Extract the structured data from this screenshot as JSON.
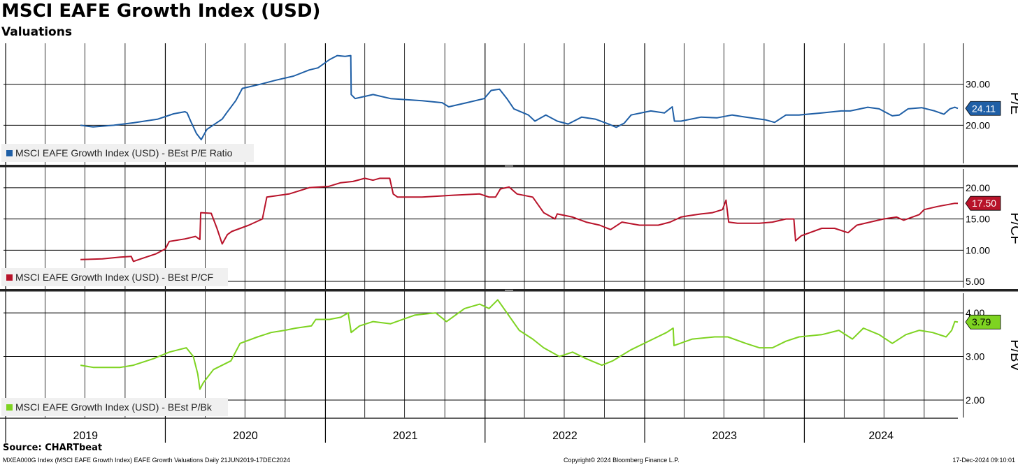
{
  "header": {
    "title": "MSCI EAFE Growth Index (USD)",
    "subtitle": "Valuations"
  },
  "footer": {
    "source": "Source: CHARTbeat",
    "left": "MXEA000G Index (MSCI EAFE Growth Index) EAFE Growth Valuations  Daily 21JUN2019-17DEC2024",
    "center": "Copyright© 2024 Bloomberg Finance L.P.",
    "right": "17-Dec-2024 09:10:01"
  },
  "chart_data": {
    "type": "line",
    "x_range": [
      "2018-12-27",
      "2024-12-17"
    ],
    "x_axis_labels": [
      "2019",
      "2020",
      "2021",
      "2022",
      "2023",
      "2024"
    ],
    "panels": [
      {
        "axis_label": "P/E",
        "ylim": [
          10.7,
          40.0
        ],
        "ticks": [
          20,
          30
        ],
        "tick_labels": [
          "20.00",
          "30.00"
        ],
        "color": "#1f5fa6",
        "last_value": "24.11",
        "series": {
          "name": "MSCI EAFE Growth Index (USD) - BEst P/E Ratio",
          "points": [
            [
              "2019-06-21",
              20.0
            ],
            [
              "2019-07-20",
              19.6
            ],
            [
              "2019-09-05",
              20.0
            ],
            [
              "2019-10-20",
              20.6
            ],
            [
              "2019-12-15",
              21.5
            ],
            [
              "2020-01-20",
              22.8
            ],
            [
              "2020-02-15",
              23.3
            ],
            [
              "2020-02-20",
              23.0
            ],
            [
              "2020-02-28",
              21.0
            ],
            [
              "2020-03-12",
              18.0
            ],
            [
              "2020-03-23",
              16.5
            ],
            [
              "2020-04-05",
              19.0
            ],
            [
              "2020-05-10",
              21.5
            ],
            [
              "2020-05-20",
              23.0
            ],
            [
              "2020-06-10",
              26.0
            ],
            [
              "2020-06-25",
              29.0
            ],
            [
              "2020-08-05",
              30.0
            ],
            [
              "2020-09-10",
              31.0
            ],
            [
              "2020-10-20",
              32.0
            ],
            [
              "2020-11-25",
              33.5
            ],
            [
              "2020-12-15",
              34.0
            ],
            [
              "2021-01-10",
              36.0
            ],
            [
              "2021-01-28",
              37.0
            ],
            [
              "2021-02-15",
              36.8
            ],
            [
              "2021-02-28",
              37.0
            ],
            [
              "2021-03-01",
              27.5
            ],
            [
              "2021-03-10",
              26.5
            ],
            [
              "2021-04-20",
              27.5
            ],
            [
              "2021-05-30",
              26.5
            ],
            [
              "2021-08-10",
              26.0
            ],
            [
              "2021-09-25",
              25.5
            ],
            [
              "2021-10-10",
              24.5
            ],
            [
              "2021-11-20",
              25.5
            ],
            [
              "2021-12-30",
              26.5
            ],
            [
              "2022-01-15",
              28.5
            ],
            [
              "2022-02-03",
              28.8
            ],
            [
              "2022-02-20",
              26.5
            ],
            [
              "2022-03-08",
              24.0
            ],
            [
              "2022-04-10",
              22.5
            ],
            [
              "2022-04-25",
              21.0
            ],
            [
              "2022-05-20",
              22.5
            ],
            [
              "2022-06-15",
              21.0
            ],
            [
              "2022-07-10",
              20.3
            ],
            [
              "2022-08-10",
              22.0
            ],
            [
              "2022-09-10",
              21.5
            ],
            [
              "2022-10-10",
              20.3
            ],
            [
              "2022-10-28",
              19.5
            ],
            [
              "2022-11-15",
              20.5
            ],
            [
              "2022-12-01",
              22.5
            ],
            [
              "2023-01-15",
              23.5
            ],
            [
              "2023-02-15",
              23.0
            ],
            [
              "2023-03-05",
              24.5
            ],
            [
              "2023-03-10",
              21.0
            ],
            [
              "2023-03-25",
              21.0
            ],
            [
              "2023-05-10",
              22.0
            ],
            [
              "2023-06-15",
              21.8
            ],
            [
              "2023-07-20",
              22.5
            ],
            [
              "2023-08-20",
              22.0
            ],
            [
              "2023-10-05",
              21.3
            ],
            [
              "2023-10-25",
              20.7
            ],
            [
              "2023-11-20",
              22.5
            ],
            [
              "2023-12-20",
              22.5
            ],
            [
              "2024-02-10",
              23.0
            ],
            [
              "2024-03-25",
              23.5
            ],
            [
              "2024-04-15",
              23.5
            ],
            [
              "2024-05-25",
              24.4
            ],
            [
              "2024-06-20",
              24.0
            ],
            [
              "2024-07-20",
              22.3
            ],
            [
              "2024-08-05",
              22.5
            ],
            [
              "2024-08-25",
              24.0
            ],
            [
              "2024-09-25",
              24.3
            ],
            [
              "2024-10-25",
              23.5
            ],
            [
              "2024-11-15",
              22.7
            ],
            [
              "2024-11-29",
              24.0
            ],
            [
              "2024-12-10",
              24.4
            ],
            [
              "2024-12-17",
              24.1
            ]
          ]
        }
      },
      {
        "axis_label": "P/CF",
        "ylim": [
          4.0,
          23.0
        ],
        "ticks": [
          5,
          10,
          15,
          20
        ],
        "tick_labels": [
          "5.00",
          "10.00",
          "15.00",
          "20.00"
        ],
        "color": "#b8132a",
        "last_value": "17.50",
        "series": {
          "name": "MSCI EAFE Growth Index (USD) - BEst P/CF",
          "points": [
            [
              "2019-06-21",
              8.5
            ],
            [
              "2019-08-10",
              8.6
            ],
            [
              "2019-09-20",
              8.9
            ],
            [
              "2019-10-15",
              9.0
            ],
            [
              "2019-10-20",
              8.2
            ],
            [
              "2019-11-10",
              8.7
            ],
            [
              "2019-12-10",
              9.4
            ],
            [
              "2020-01-01",
              10.2
            ],
            [
              "2020-01-10",
              11.4
            ],
            [
              "2020-02-15",
              11.8
            ],
            [
              "2020-03-10",
              12.2
            ],
            [
              "2020-03-20",
              11.7
            ],
            [
              "2020-03-22",
              16.0
            ],
            [
              "2020-04-15",
              15.9
            ],
            [
              "2020-04-28",
              13.5
            ],
            [
              "2020-05-10",
              11.0
            ],
            [
              "2020-05-22",
              12.5
            ],
            [
              "2020-06-01",
              13.0
            ],
            [
              "2020-07-10",
              14.0
            ],
            [
              "2020-08-10",
              15.0
            ],
            [
              "2020-08-20",
              18.5
            ],
            [
              "2020-10-10",
              19.0
            ],
            [
              "2020-11-25",
              20.0
            ],
            [
              "2021-01-08",
              20.2
            ],
            [
              "2021-02-05",
              20.8
            ],
            [
              "2021-03-05",
              21.0
            ],
            [
              "2021-04-01",
              21.5
            ],
            [
              "2021-04-20",
              21.2
            ],
            [
              "2021-05-05",
              21.5
            ],
            [
              "2021-05-28",
              21.5
            ],
            [
              "2021-06-05",
              19.0
            ],
            [
              "2021-06-15",
              18.5
            ],
            [
              "2021-08-10",
              18.5
            ],
            [
              "2021-10-20",
              18.8
            ],
            [
              "2021-12-20",
              19.0
            ],
            [
              "2022-01-10",
              18.5
            ],
            [
              "2022-01-25",
              18.5
            ],
            [
              "2022-02-05",
              19.8
            ],
            [
              "2022-02-25",
              20.1
            ],
            [
              "2022-03-15",
              19.0
            ],
            [
              "2022-04-20",
              18.5
            ],
            [
              "2022-05-15",
              16.0
            ],
            [
              "2022-06-10",
              15.0
            ],
            [
              "2022-06-15",
              15.8
            ],
            [
              "2022-07-20",
              15.3
            ],
            [
              "2022-08-20",
              14.5
            ],
            [
              "2022-09-20",
              14.0
            ],
            [
              "2022-10-15",
              13.3
            ],
            [
              "2022-11-10",
              14.5
            ],
            [
              "2022-12-20",
              14.0
            ],
            [
              "2023-02-01",
              14.0
            ],
            [
              "2023-02-28",
              14.5
            ],
            [
              "2023-03-25",
              15.3
            ],
            [
              "2023-04-10",
              15.5
            ],
            [
              "2023-05-10",
              15.8
            ],
            [
              "2023-06-05",
              16.0
            ],
            [
              "2023-06-28",
              16.5
            ],
            [
              "2023-07-06",
              18.0
            ],
            [
              "2023-07-12",
              14.5
            ],
            [
              "2023-08-01",
              14.3
            ],
            [
              "2023-09-20",
              14.3
            ],
            [
              "2023-10-20",
              14.5
            ],
            [
              "2023-11-20",
              15.0
            ],
            [
              "2023-12-08",
              15.0
            ],
            [
              "2023-12-12",
              11.5
            ],
            [
              "2023-12-25",
              12.3
            ],
            [
              "2024-02-10",
              13.5
            ],
            [
              "2024-03-10",
              13.5
            ],
            [
              "2024-04-10",
              12.8
            ],
            [
              "2024-04-30",
              14.0
            ],
            [
              "2024-05-30",
              14.5
            ],
            [
              "2024-06-30",
              15.0
            ],
            [
              "2024-07-30",
              15.3
            ],
            [
              "2024-08-15",
              14.8
            ],
            [
              "2024-09-20",
              15.7
            ],
            [
              "2024-10-01",
              16.5
            ],
            [
              "2024-11-01",
              17.0
            ],
            [
              "2024-12-10",
              17.5
            ],
            [
              "2024-12-17",
              17.5
            ]
          ]
        }
      },
      {
        "axis_label": "P/BV",
        "ylim": [
          1.6,
          4.45
        ],
        "ticks": [
          2,
          3,
          4
        ],
        "tick_labels": [
          "2.00",
          "3.00",
          "4.00"
        ],
        "color": "#7ed321",
        "last_value": "3.79",
        "series": {
          "name": "MSCI EAFE Growth Index (USD) - BEst P/Bk",
          "points": [
            [
              "2019-06-21",
              2.8
            ],
            [
              "2019-07-20",
              2.75
            ],
            [
              "2019-09-20",
              2.75
            ],
            [
              "2019-10-20",
              2.8
            ],
            [
              "2019-12-05",
              2.95
            ],
            [
              "2020-01-10",
              3.1
            ],
            [
              "2020-02-18",
              3.2
            ],
            [
              "2020-03-05",
              3.0
            ],
            [
              "2020-03-15",
              2.6
            ],
            [
              "2020-03-20",
              2.25
            ],
            [
              "2020-03-28",
              2.4
            ],
            [
              "2020-04-20",
              2.7
            ],
            [
              "2020-05-30",
              2.9
            ],
            [
              "2020-06-20",
              3.3
            ],
            [
              "2020-07-30",
              3.45
            ],
            [
              "2020-08-30",
              3.55
            ],
            [
              "2020-09-30",
              3.6
            ],
            [
              "2020-10-25",
              3.65
            ],
            [
              "2020-11-30",
              3.7
            ],
            [
              "2020-12-10",
              3.85
            ],
            [
              "2021-01-10",
              3.85
            ],
            [
              "2021-02-05",
              3.9
            ],
            [
              "2021-02-22",
              4.0
            ],
            [
              "2021-03-01",
              3.55
            ],
            [
              "2021-03-20",
              3.7
            ],
            [
              "2021-04-20",
              3.8
            ],
            [
              "2021-05-30",
              3.75
            ],
            [
              "2021-07-25",
              3.95
            ],
            [
              "2021-09-10",
              4.0
            ],
            [
              "2021-10-05",
              3.8
            ],
            [
              "2021-11-15",
              4.1
            ],
            [
              "2021-12-20",
              4.2
            ],
            [
              "2022-01-10",
              4.1
            ],
            [
              "2022-01-30",
              4.3
            ],
            [
              "2022-02-20",
              4.0
            ],
            [
              "2022-03-20",
              3.6
            ],
            [
              "2022-04-20",
              3.4
            ],
            [
              "2022-05-15",
              3.2
            ],
            [
              "2022-06-20",
              3.0
            ],
            [
              "2022-07-20",
              3.1
            ],
            [
              "2022-08-20",
              2.95
            ],
            [
              "2022-09-25",
              2.8
            ],
            [
              "2022-10-20",
              2.9
            ],
            [
              "2022-11-30",
              3.15
            ],
            [
              "2023-01-20",
              3.4
            ],
            [
              "2023-02-20",
              3.55
            ],
            [
              "2023-03-07",
              3.65
            ],
            [
              "2023-03-09",
              3.25
            ],
            [
              "2023-04-20",
              3.4
            ],
            [
              "2023-06-10",
              3.45
            ],
            [
              "2023-07-10",
              3.45
            ],
            [
              "2023-08-20",
              3.3
            ],
            [
              "2023-09-20",
              3.2
            ],
            [
              "2023-10-20",
              3.2
            ],
            [
              "2023-11-20",
              3.35
            ],
            [
              "2023-12-20",
              3.45
            ],
            [
              "2024-02-10",
              3.5
            ],
            [
              "2024-03-20",
              3.6
            ],
            [
              "2024-04-20",
              3.4
            ],
            [
              "2024-05-15",
              3.65
            ],
            [
              "2024-06-20",
              3.5
            ],
            [
              "2024-07-20",
              3.3
            ],
            [
              "2024-08-20",
              3.5
            ],
            [
              "2024-09-20",
              3.6
            ],
            [
              "2024-10-20",
              3.55
            ],
            [
              "2024-11-20",
              3.45
            ],
            [
              "2024-12-03",
              3.6
            ],
            [
              "2024-12-10",
              3.8
            ],
            [
              "2024-12-17",
              3.79
            ]
          ]
        }
      }
    ]
  }
}
